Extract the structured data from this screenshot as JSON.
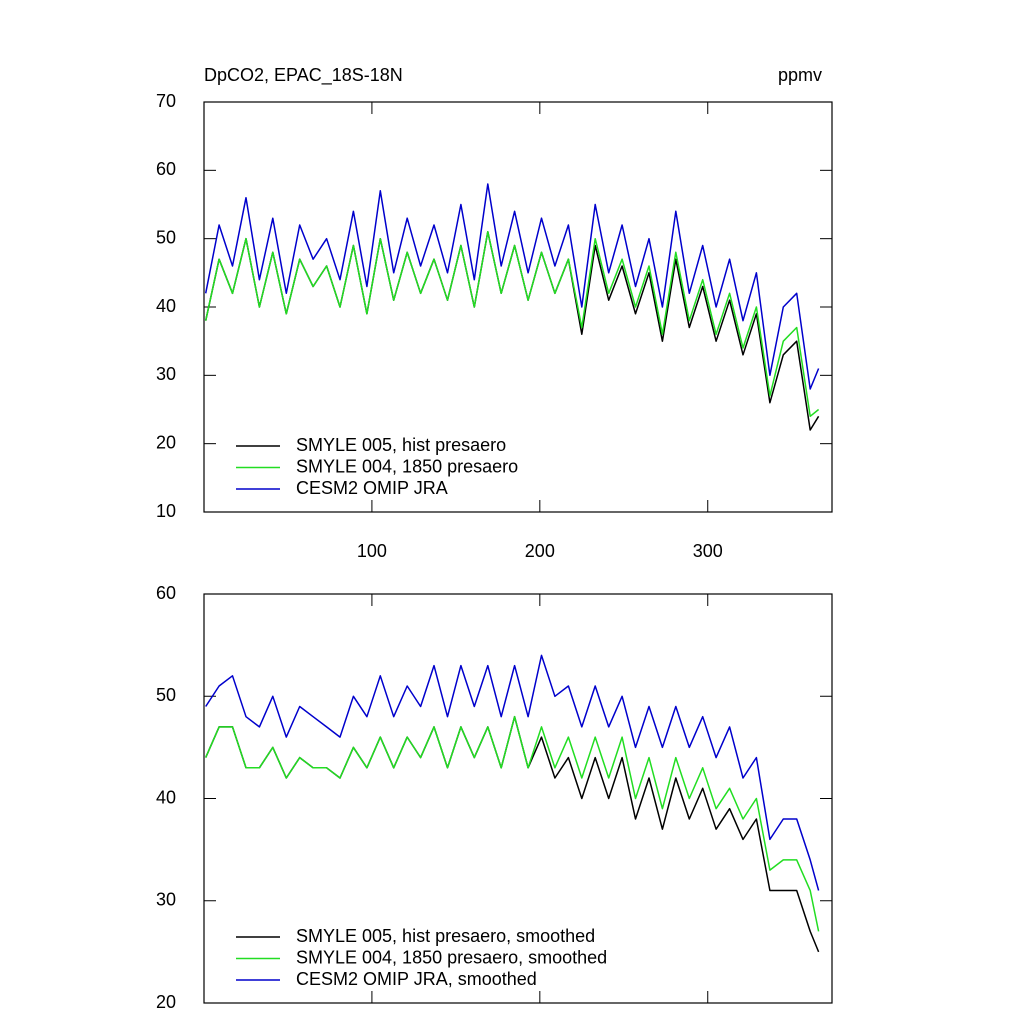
{
  "chart_data": [
    {
      "type": "line",
      "title": "DpCO2, EPAC_18S-18N",
      "units": "ppmv",
      "x": [
        1,
        9,
        17,
        25,
        33,
        41,
        49,
        57,
        65,
        73,
        81,
        89,
        97,
        105,
        113,
        121,
        129,
        137,
        145,
        153,
        161,
        169,
        177,
        185,
        193,
        201,
        209,
        217,
        225,
        233,
        241,
        249,
        257,
        265,
        273,
        281,
        289,
        297,
        305,
        313,
        321,
        329,
        337,
        345,
        353,
        361,
        366
      ],
      "series": [
        {
          "name": "SMYLE 005, hist presaero",
          "color": "#000000",
          "values": [
            38,
            47,
            42,
            50,
            40,
            48,
            39,
            47,
            43,
            46,
            40,
            49,
            39,
            50,
            41,
            48,
            42,
            47,
            41,
            49,
            40,
            51,
            42,
            49,
            41,
            48,
            42,
            47,
            36,
            49,
            41,
            46,
            39,
            45,
            35,
            47,
            37,
            43,
            35,
            41,
            33,
            39,
            26,
            33,
            35,
            22,
            24
          ]
        },
        {
          "name": "SMYLE 004, 1850 presaero",
          "color": "#22dd22",
          "values": [
            38,
            47,
            42,
            50,
            40,
            48,
            39,
            47,
            43,
            46,
            40,
            49,
            39,
            50,
            41,
            48,
            42,
            47,
            41,
            49,
            40,
            51,
            42,
            49,
            41,
            48,
            42,
            47,
            37,
            50,
            42,
            47,
            40,
            46,
            36,
            48,
            38,
            44,
            36,
            42,
            34,
            40,
            27,
            35,
            37,
            24,
            25
          ]
        },
        {
          "name": "CESM2 OMIP JRA",
          "color": "#0000cc",
          "values": [
            42,
            52,
            46,
            56,
            44,
            53,
            42,
            52,
            47,
            50,
            44,
            54,
            43,
            57,
            45,
            53,
            46,
            52,
            45,
            55,
            44,
            58,
            46,
            54,
            45,
            53,
            46,
            52,
            40,
            55,
            45,
            52,
            43,
            50,
            40,
            54,
            42,
            49,
            40,
            47,
            38,
            45,
            30,
            40,
            42,
            28,
            31
          ]
        }
      ],
      "xlim": [
        0,
        374
      ],
      "xticks": [
        100,
        200,
        300
      ],
      "xtick_labels": true,
      "ylim": [
        10,
        70
      ],
      "yticks": [
        10,
        20,
        30,
        40,
        50,
        60,
        70
      ],
      "legend": "lower left"
    },
    {
      "type": "line",
      "x": [
        1,
        9,
        17,
        25,
        33,
        41,
        49,
        57,
        65,
        73,
        81,
        89,
        97,
        105,
        113,
        121,
        129,
        137,
        145,
        153,
        161,
        169,
        177,
        185,
        193,
        201,
        209,
        217,
        225,
        233,
        241,
        249,
        257,
        265,
        273,
        281,
        289,
        297,
        305,
        313,
        321,
        329,
        337,
        345,
        353,
        361,
        366
      ],
      "series": [
        {
          "name": "SMYLE 005, hist presaero, smoothed",
          "color": "#000000",
          "values": [
            44,
            47,
            47,
            43,
            43,
            45,
            42,
            44,
            43,
            43,
            42,
            45,
            43,
            46,
            43,
            46,
            44,
            47,
            43,
            47,
            44,
            47,
            43,
            48,
            43,
            46,
            42,
            44,
            40,
            44,
            40,
            44,
            38,
            42,
            37,
            42,
            38,
            41,
            37,
            39,
            36,
            38,
            31,
            31,
            31,
            27,
            25
          ]
        },
        {
          "name": "SMYLE 004, 1850 presaero, smoothed",
          "color": "#22dd22",
          "values": [
            44,
            47,
            47,
            43,
            43,
            45,
            42,
            44,
            43,
            43,
            42,
            45,
            43,
            46,
            43,
            46,
            44,
            47,
            43,
            47,
            44,
            47,
            43,
            48,
            43,
            47,
            43,
            46,
            42,
            46,
            42,
            46,
            40,
            44,
            39,
            44,
            40,
            43,
            39,
            41,
            38,
            40,
            33,
            34,
            34,
            31,
            27
          ]
        },
        {
          "name": "CESM2 OMIP JRA, smoothed",
          "color": "#0000cc",
          "values": [
            49,
            51,
            52,
            48,
            47,
            50,
            46,
            49,
            48,
            47,
            46,
            50,
            48,
            52,
            48,
            51,
            49,
            53,
            48,
            53,
            49,
            53,
            48,
            53,
            48,
            54,
            50,
            51,
            47,
            51,
            47,
            50,
            45,
            49,
            45,
            49,
            45,
            48,
            44,
            47,
            42,
            44,
            36,
            38,
            38,
            34,
            31
          ]
        }
      ],
      "xlim": [
        0,
        374
      ],
      "xticks": [
        100,
        200,
        300
      ],
      "xtick_labels": false,
      "ylim": [
        20,
        60
      ],
      "yticks": [
        20,
        30,
        40,
        50,
        60
      ],
      "legend": "lower left"
    }
  ]
}
